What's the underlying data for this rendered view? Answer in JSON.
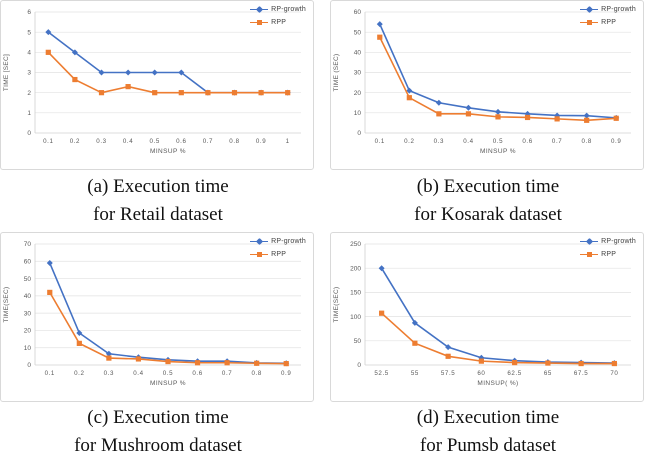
{
  "colors": {
    "rp_growth": "#4472C4",
    "rpp": "#ED7D31",
    "grid": "#E2E2E2",
    "axis_line": "#D0D0D0",
    "axis_text": "#595959",
    "chart_border": "#D9D9D9"
  },
  "chart_data": [
    {
      "id": "a",
      "type": "line",
      "title": "",
      "xlabel": "MINSUP %",
      "ylabel": "TIME [SEC]",
      "categories": [
        "0.1",
        "0.2",
        "0.3",
        "0.4",
        "0.5",
        "0.6",
        "0.7",
        "0.8",
        "0.9",
        "1"
      ],
      "ylim": [
        0,
        6
      ],
      "yticks": [
        0,
        1,
        2,
        3,
        4,
        5,
        6
      ],
      "grid": true,
      "legend_position": "top-right",
      "series": [
        {
          "name": "RP-growth",
          "marker": "diamond",
          "color": "#4472C4",
          "values": [
            5,
            4,
            3,
            3,
            3,
            3,
            2,
            2,
            2,
            2
          ]
        },
        {
          "name": "RPP",
          "marker": "square",
          "color": "#ED7D31",
          "values": [
            4,
            2.65,
            2,
            2.3,
            2,
            2,
            2,
            2,
            2,
            2
          ]
        }
      ],
      "caption_line1": "(a) Execution time",
      "caption_line2": "for Retail dataset"
    },
    {
      "id": "b",
      "type": "line",
      "title": "",
      "xlabel": "MINSUP %",
      "ylabel": "TIME (SEC)",
      "categories": [
        "0.1",
        "0.2",
        "0.3",
        "0.4",
        "0.5",
        "0.6",
        "0.7",
        "0.8",
        "0.9"
      ],
      "ylim": [
        0,
        60
      ],
      "yticks": [
        0,
        10,
        20,
        30,
        40,
        50,
        60
      ],
      "grid": true,
      "legend_position": "top-right",
      "series": [
        {
          "name": "RP-growth",
          "marker": "diamond",
          "color": "#4472C4",
          "values": [
            54,
            21,
            15,
            12.5,
            10.5,
            9.5,
            8.7,
            8.6,
            7.5
          ]
        },
        {
          "name": "RPP",
          "marker": "square",
          "color": "#ED7D31",
          "values": [
            47.5,
            17.5,
            9.5,
            9.5,
            8,
            7.7,
            7,
            6.3,
            7.3
          ]
        }
      ],
      "caption_line1": "(b) Execution time",
      "caption_line2": "for Kosarak dataset"
    },
    {
      "id": "c",
      "type": "line",
      "title": "",
      "xlabel": "MINSUP %",
      "ylabel": "TIME(SEC)",
      "categories": [
        "0.1",
        "0.2",
        "0.3",
        "0.4",
        "0.5",
        "0.6",
        "0.7",
        "0.8",
        "0.9"
      ],
      "ylim": [
        0,
        70
      ],
      "yticks": [
        0,
        10,
        20,
        30,
        40,
        50,
        60,
        70
      ],
      "grid": true,
      "legend_position": "top-right",
      "series": [
        {
          "name": "RP-growth",
          "marker": "diamond",
          "color": "#4472C4",
          "values": [
            59,
            18.5,
            6.5,
            4.5,
            3,
            2.2,
            2.2,
            1.2,
            1
          ]
        },
        {
          "name": "RPP",
          "marker": "square",
          "color": "#ED7D31",
          "values": [
            42,
            12.5,
            4,
            3.5,
            2,
            1.3,
            1.3,
            1,
            0.8
          ]
        }
      ],
      "caption_line1": "(c) Execution time",
      "caption_line2": "for Mushroom dataset"
    },
    {
      "id": "d",
      "type": "line",
      "title": "",
      "xlabel": "MINSUP( %)",
      "ylabel": "TIME(SEC)",
      "categories": [
        "52.5",
        "55",
        "57.5",
        "60",
        "62.5",
        "65",
        "67.5",
        "70"
      ],
      "ylim": [
        0,
        250
      ],
      "yticks": [
        0,
        50,
        100,
        150,
        200,
        250
      ],
      "grid": true,
      "legend_position": "top-right",
      "series": [
        {
          "name": "RP-growth",
          "marker": "diamond",
          "color": "#4472C4",
          "values": [
            200,
            87,
            37,
            15,
            9,
            6,
            5,
            4
          ]
        },
        {
          "name": "RPP",
          "marker": "square",
          "color": "#ED7D31",
          "values": [
            107,
            45,
            18,
            8,
            5,
            4,
            3,
            3
          ]
        }
      ],
      "caption_line1": "(d) Execution time",
      "caption_line2": "for Pumsb dataset"
    }
  ]
}
